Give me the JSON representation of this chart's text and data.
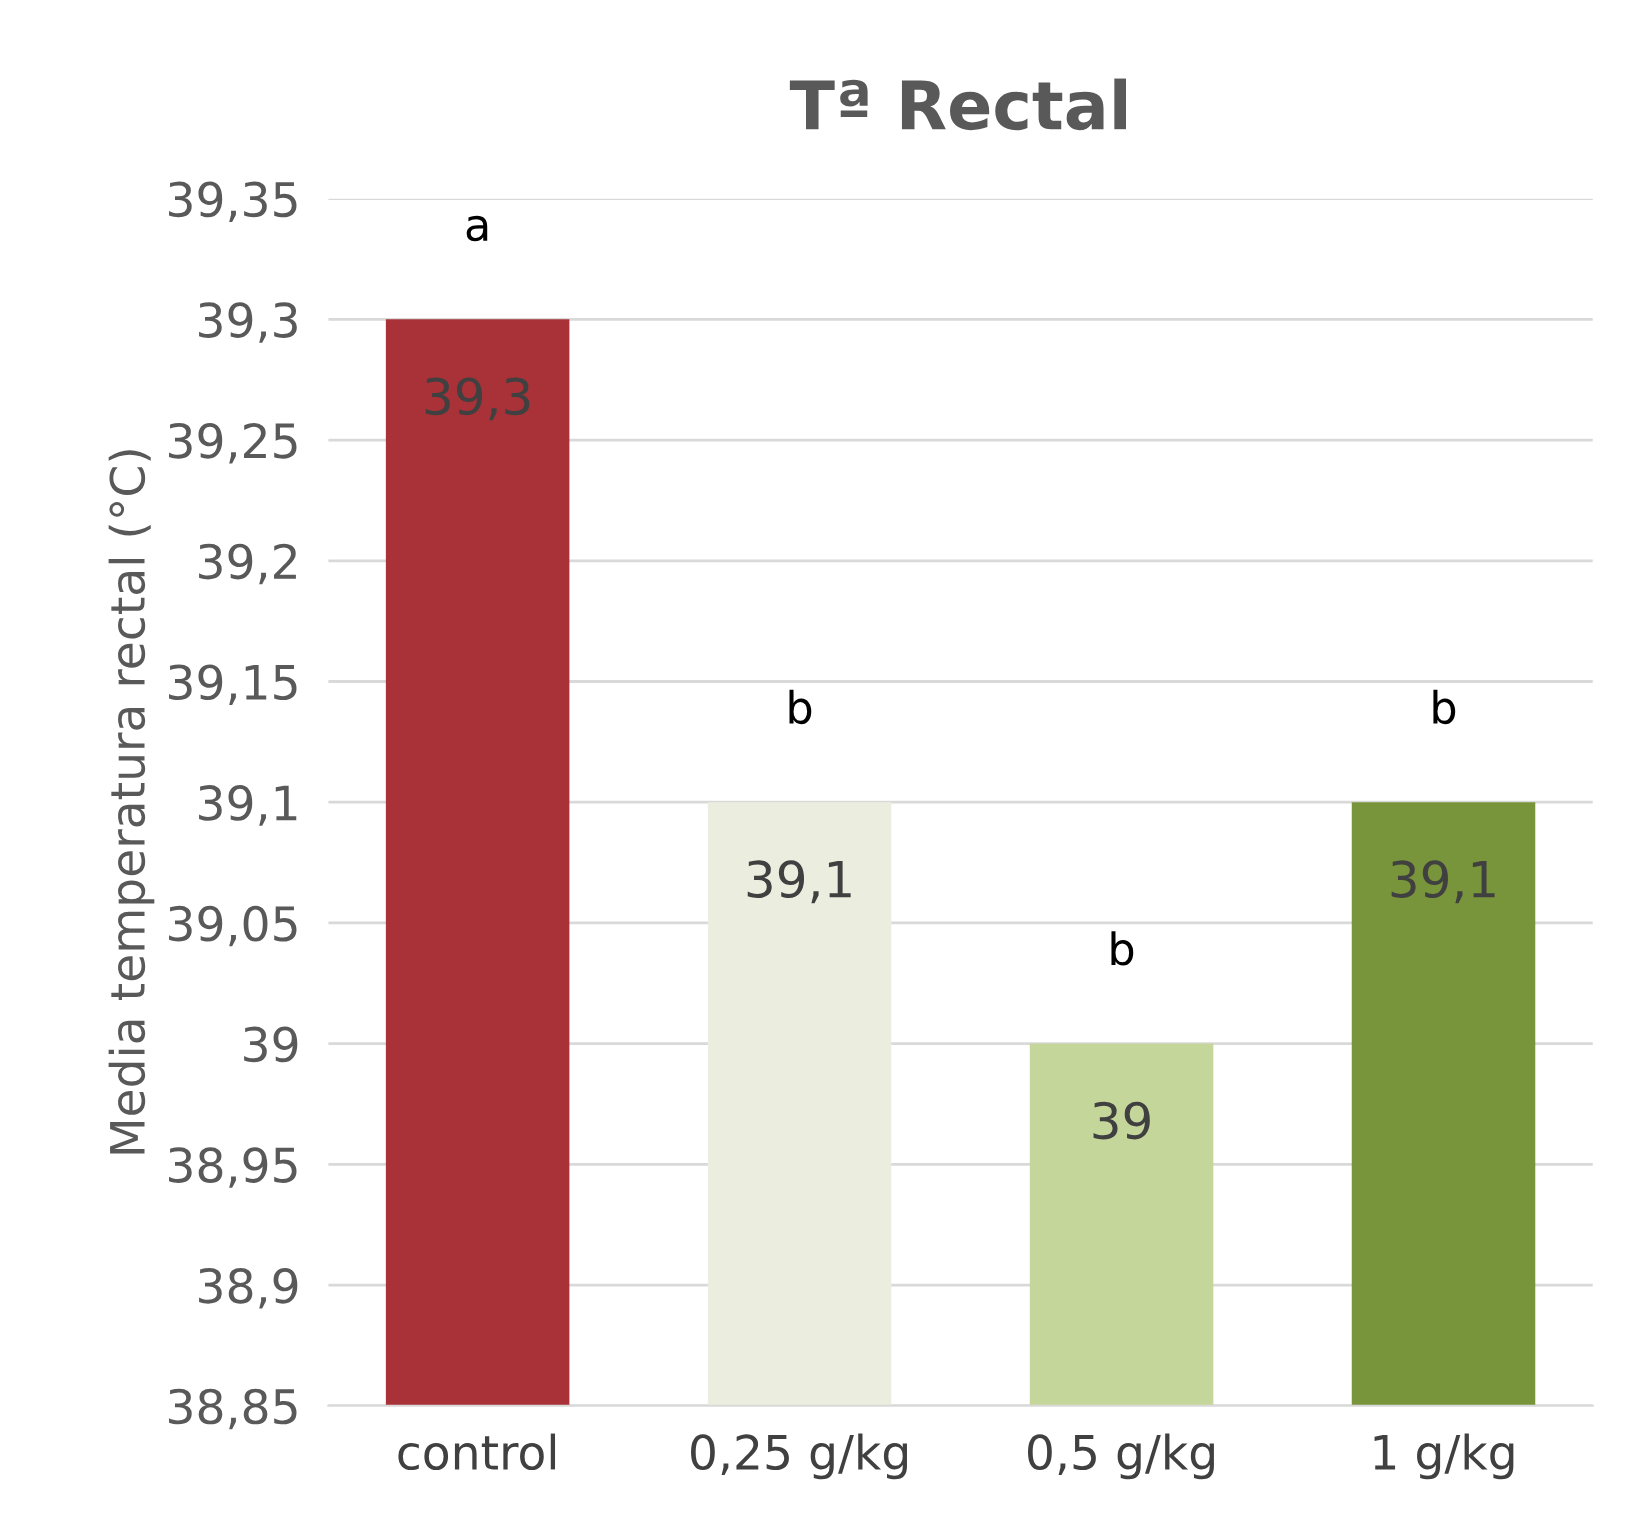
{
  "chart_data": {
    "type": "bar",
    "title": "Tª Rectal",
    "ylabel": "Media temperatura rectal (°C)",
    "categories": [
      "control",
      "0,25 g/kg",
      "0,5 g/kg",
      "1 g/kg"
    ],
    "values": [
      39.3,
      39.1,
      39.0,
      39.1
    ],
    "colors": [
      "#a83238",
      "#ebeedf",
      "#c5d69b",
      "#78953b"
    ],
    "value_labels": [
      "39,3",
      "39,1",
      "39",
      "39,1"
    ],
    "ylim": [
      38.85,
      39.35
    ],
    "yticks": [
      {
        "value": 38.85,
        "label": "38,85"
      },
      {
        "value": 38.9,
        "label": "38,9"
      },
      {
        "value": 38.95,
        "label": "38,95"
      },
      {
        "value": 39,
        "label": "39"
      },
      {
        "value": 39.05,
        "label": "39,05"
      },
      {
        "value": 39.1,
        "label": "39,1"
      },
      {
        "value": 39.15,
        "label": "39,15"
      },
      {
        "value": 39.2,
        "label": "39,2"
      },
      {
        "value": 39.25,
        "label": "39,25"
      },
      {
        "value": 39.3,
        "label": "39,3"
      },
      {
        "value": 39.35,
        "label": "39,35"
      }
    ],
    "grid": "y",
    "annotations": [
      {
        "text": "a",
        "x": "control",
        "y": 39.3
      },
      {
        "text": "b",
        "x": "0,25 g/kg",
        "y": 39.1
      },
      {
        "text": "b",
        "x": "0,5 g/kg",
        "y": 39.0
      },
      {
        "text": "b",
        "x": "1 g/kg",
        "y": 39.1
      }
    ]
  }
}
